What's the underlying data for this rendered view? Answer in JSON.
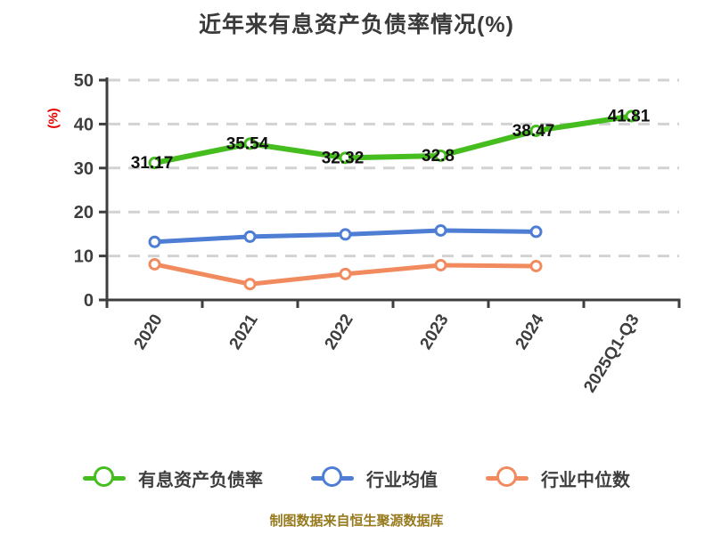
{
  "title": "近年来有息资产负债率情况(%)",
  "footer": "制图数据来自恒生聚源数据库",
  "colors": {
    "title_text": "#3a3a3a",
    "axis": "#3e3e3e",
    "grid": "#d2d2d2",
    "data_label": "#111111",
    "y_unit_label": "#e60000",
    "footer_text": "#97791e",
    "background": "#ffffff",
    "marker_fill": "#ffffff"
  },
  "chart_data": {
    "type": "line",
    "title": "近年来有息资产负债率情况(%)",
    "xlabel": "",
    "ylabel": "(%)",
    "categories": [
      "2020",
      "2021",
      "2022",
      "2023",
      "2024",
      "2025Q1-Q3"
    ],
    "series": [
      {
        "name": "有息资产负债率",
        "color": "#46bd1f",
        "values": [
          31.17,
          35.54,
          32.32,
          32.8,
          38.47,
          41.81
        ],
        "show_labels": true,
        "data_labels": [
          "31.17",
          "35.54",
          "32.32",
          "32.8",
          "38.47",
          "41.81"
        ]
      },
      {
        "name": "行业均值",
        "color": "#4e7dd4",
        "values": [
          13.2,
          14.4,
          14.9,
          15.8,
          15.5
        ],
        "show_labels": false
      },
      {
        "name": "行业中位数",
        "color": "#f18b5f",
        "values": [
          8.1,
          3.6,
          5.9,
          7.9,
          7.7
        ],
        "show_labels": false
      }
    ],
    "ylim": [
      0,
      50
    ],
    "yticks": [
      0,
      10,
      20,
      30,
      40,
      50
    ],
    "grid": "horizontal-dashed",
    "legend_position": "bottom",
    "x_tick_label_rotation_deg": -58,
    "marker_style": "circle-white-fill"
  }
}
